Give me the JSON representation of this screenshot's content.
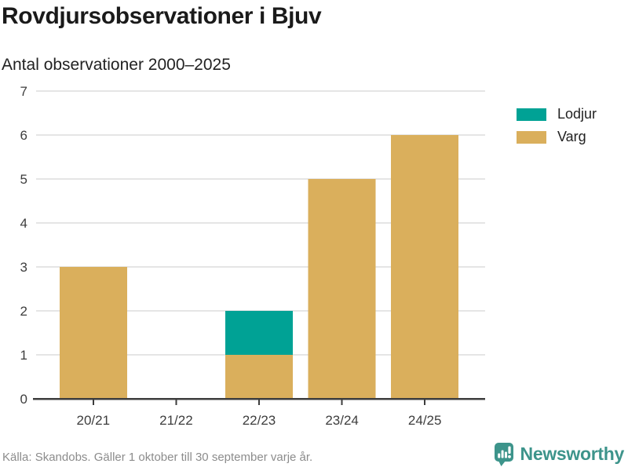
{
  "header": {
    "title": "Rovdjursobservationer i Bjuv",
    "subtitle": "Antal observationer 2000–2025"
  },
  "chart_data": {
    "type": "bar",
    "stacked": true,
    "title": "Rovdjursobservationer i Bjuv",
    "subtitle": "Antal observationer 2000–2025",
    "categories": [
      "20/21",
      "21/22",
      "22/23",
      "23/24",
      "24/25"
    ],
    "series": [
      {
        "name": "Lodjur",
        "color": "#00a295",
        "values": [
          0,
          0,
          1,
          0,
          0
        ]
      },
      {
        "name": "Varg",
        "color": "#daaf5c",
        "values": [
          3,
          0,
          1,
          5,
          6
        ]
      }
    ],
    "stack_bottom_to_top": [
      "Varg",
      "Lodjur"
    ],
    "totals": [
      3,
      0,
      2,
      5,
      6
    ],
    "ylim": [
      0,
      7
    ],
    "yticks": [
      0,
      1,
      2,
      3,
      4,
      5,
      6,
      7
    ],
    "xlabel": "",
    "ylabel": "",
    "grid": true,
    "legend_position": "top-right"
  },
  "colors": {
    "lodjur": "#00a295",
    "varg": "#daaf5c",
    "grid": "#e5e5e5",
    "axis_line": "#3d3d3d",
    "axis_text": "#3d3d3d",
    "title_text": "#1a1a1a",
    "footer_text": "#8c8c8c",
    "brand_teal": "#3d948b"
  },
  "footer": {
    "source": "Källa: Skandobs. Gäller 1 oktober till 30 september varje år.",
    "brand_name": "Newsworthy"
  }
}
